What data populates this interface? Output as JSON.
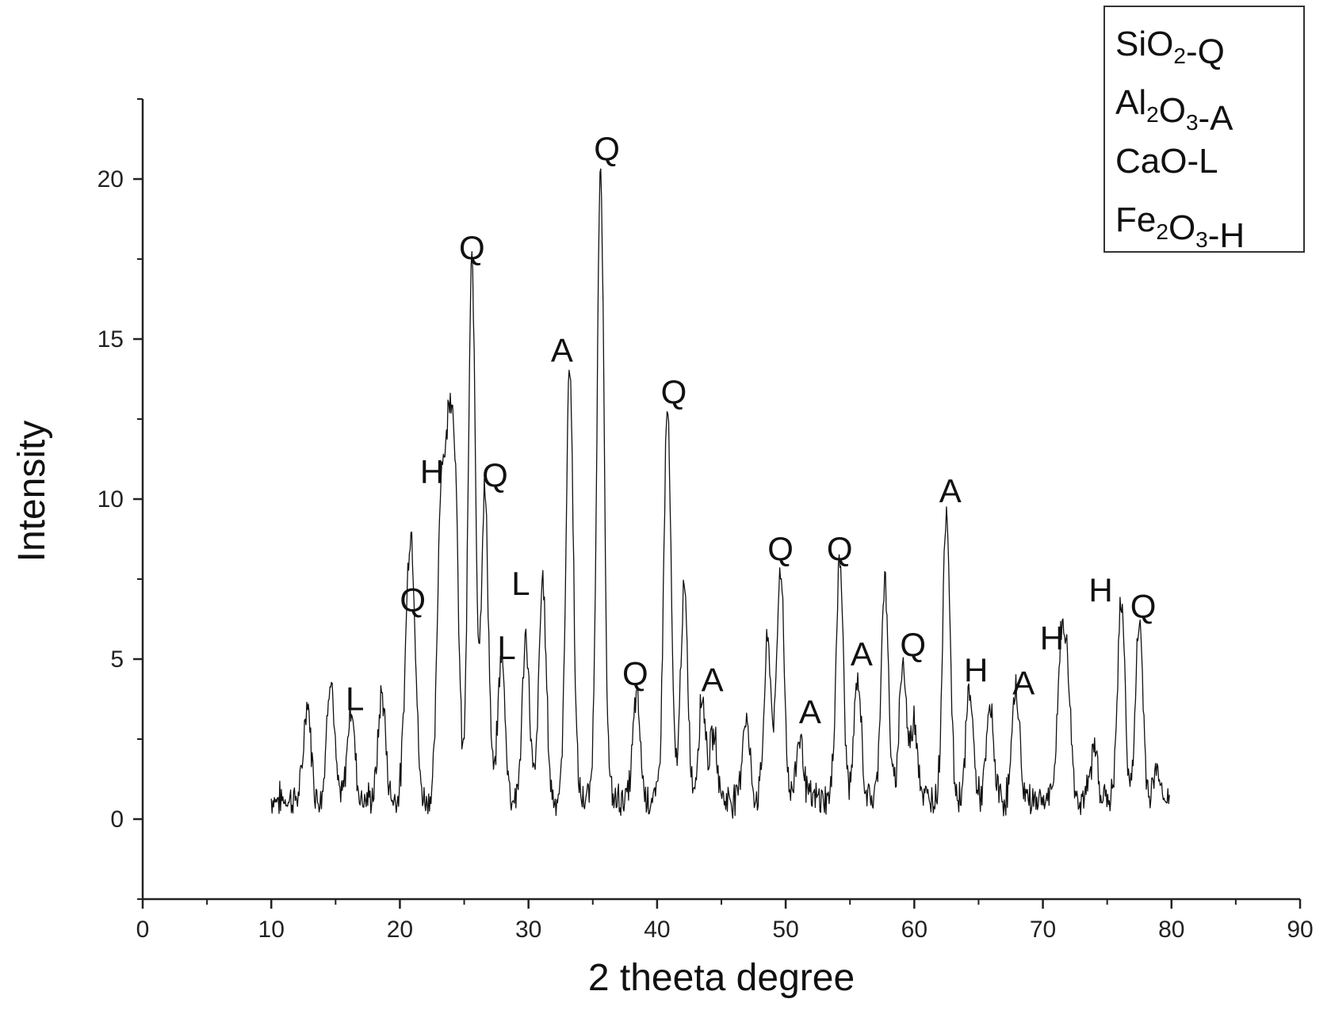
{
  "chart_data": {
    "type": "line",
    "title": "",
    "xlabel": "2 theeta degree",
    "ylabel": "Intensity",
    "xlim": [
      0,
      90
    ],
    "ylim": [
      -2.5,
      22.5
    ],
    "xticks": [
      "0",
      "10",
      "20",
      "30",
      "40",
      "50",
      "60",
      "70",
      "80",
      "90"
    ],
    "yticks": [
      "0",
      "5",
      "10",
      "15",
      "20"
    ],
    "grid": false,
    "legend_position": "top-right",
    "legend": [
      {
        "main": "SiO",
        "sub1": "2",
        "mid": "-Q",
        "sub2": "",
        "end": ""
      },
      {
        "main": "Al",
        "sub1": "2",
        "mid": "O",
        "sub2": "3",
        "end": "-A"
      },
      {
        "main": "CaO-L",
        "sub1": "",
        "mid": "",
        "sub2": "",
        "end": ""
      },
      {
        "main": "Fe",
        "sub1": "2",
        "mid": "O",
        "sub2": "3",
        "end": "-H"
      }
    ],
    "peaks": [
      {
        "x": 12.8,
        "y": 3.0
      },
      {
        "x": 14.6,
        "y": 3.9
      },
      {
        "x": 16.2,
        "y": 2.9
      },
      {
        "x": 18.6,
        "y": 3.3
      },
      {
        "x": 20.6,
        "y": 4.8
      },
      {
        "x": 21.0,
        "y": 5.9
      },
      {
        "x": 23.2,
        "y": 9.3
      },
      {
        "x": 23.8,
        "y": 9.7
      },
      {
        "x": 24.3,
        "y": 8.8
      },
      {
        "x": 25.6,
        "y": 16.7
      },
      {
        "x": 26.6,
        "y": 9.6
      },
      {
        "x": 27.9,
        "y": 4.5
      },
      {
        "x": 29.8,
        "y": 5.0
      },
      {
        "x": 31.1,
        "y": 6.8
      },
      {
        "x": 33.2,
        "y": 13.6
      },
      {
        "x": 35.6,
        "y": 19.4
      },
      {
        "x": 38.4,
        "y": 3.2
      },
      {
        "x": 40.8,
        "y": 12.2
      },
      {
        "x": 42.1,
        "y": 6.5
      },
      {
        "x": 43.5,
        "y": 3.2
      },
      {
        "x": 44.4,
        "y": 2.0
      },
      {
        "x": 46.9,
        "y": 2.6
      },
      {
        "x": 48.6,
        "y": 4.9
      },
      {
        "x": 49.6,
        "y": 7.3
      },
      {
        "x": 51.1,
        "y": 2.0
      },
      {
        "x": 54.2,
        "y": 7.5
      },
      {
        "x": 55.6,
        "y": 3.7
      },
      {
        "x": 57.7,
        "y": 6.8
      },
      {
        "x": 59.1,
        "y": 4.3
      },
      {
        "x": 60.0,
        "y": 2.5
      },
      {
        "x": 62.5,
        "y": 9.1
      },
      {
        "x": 64.3,
        "y": 3.4
      },
      {
        "x": 65.9,
        "y": 2.8
      },
      {
        "x": 67.9,
        "y": 3.5
      },
      {
        "x": 71.4,
        "y": 4.4
      },
      {
        "x": 71.9,
        "y": 3.6
      },
      {
        "x": 74.0,
        "y": 1.6
      },
      {
        "x": 76.1,
        "y": 6.2
      },
      {
        "x": 77.5,
        "y": 5.5
      },
      {
        "x": 78.9,
        "y": 0.9
      }
    ],
    "annotations": [
      {
        "text": "L",
        "x": 16.5,
        "y": 3.4
      },
      {
        "text": "Q",
        "x": 21.0,
        "y": 6.5
      },
      {
        "text": "H",
        "x": 22.5,
        "y": 10.5
      },
      {
        "text": "Q",
        "x": 25.6,
        "y": 17.5
      },
      {
        "text": "Q",
        "x": 27.4,
        "y": 10.4
      },
      {
        "text": "L",
        "x": 29.4,
        "y": 7.0
      },
      {
        "text": "L",
        "x": 28.3,
        "y": 5.0
      },
      {
        "text": "A",
        "x": 32.6,
        "y": 14.3
      },
      {
        "text": "Q",
        "x": 36.1,
        "y": 20.6
      },
      {
        "text": "Q",
        "x": 38.3,
        "y": 4.2
      },
      {
        "text": "Q",
        "x": 41.3,
        "y": 13.0
      },
      {
        "text": "A",
        "x": 44.3,
        "y": 4.0
      },
      {
        "text": "Q",
        "x": 49.6,
        "y": 8.1
      },
      {
        "text": "A",
        "x": 51.9,
        "y": 3.0
      },
      {
        "text": "Q",
        "x": 54.2,
        "y": 8.1
      },
      {
        "text": "A",
        "x": 55.9,
        "y": 4.8
      },
      {
        "text": "Q",
        "x": 59.9,
        "y": 5.1
      },
      {
        "text": "A",
        "x": 62.8,
        "y": 9.9
      },
      {
        "text": "H",
        "x": 64.8,
        "y": 4.3
      },
      {
        "text": "A",
        "x": 68.5,
        "y": 3.9
      },
      {
        "text": "H",
        "x": 70.7,
        "y": 5.3
      },
      {
        "text": "H",
        "x": 74.5,
        "y": 6.8
      },
      {
        "text": "Q",
        "x": 77.8,
        "y": 6.3
      }
    ]
  }
}
